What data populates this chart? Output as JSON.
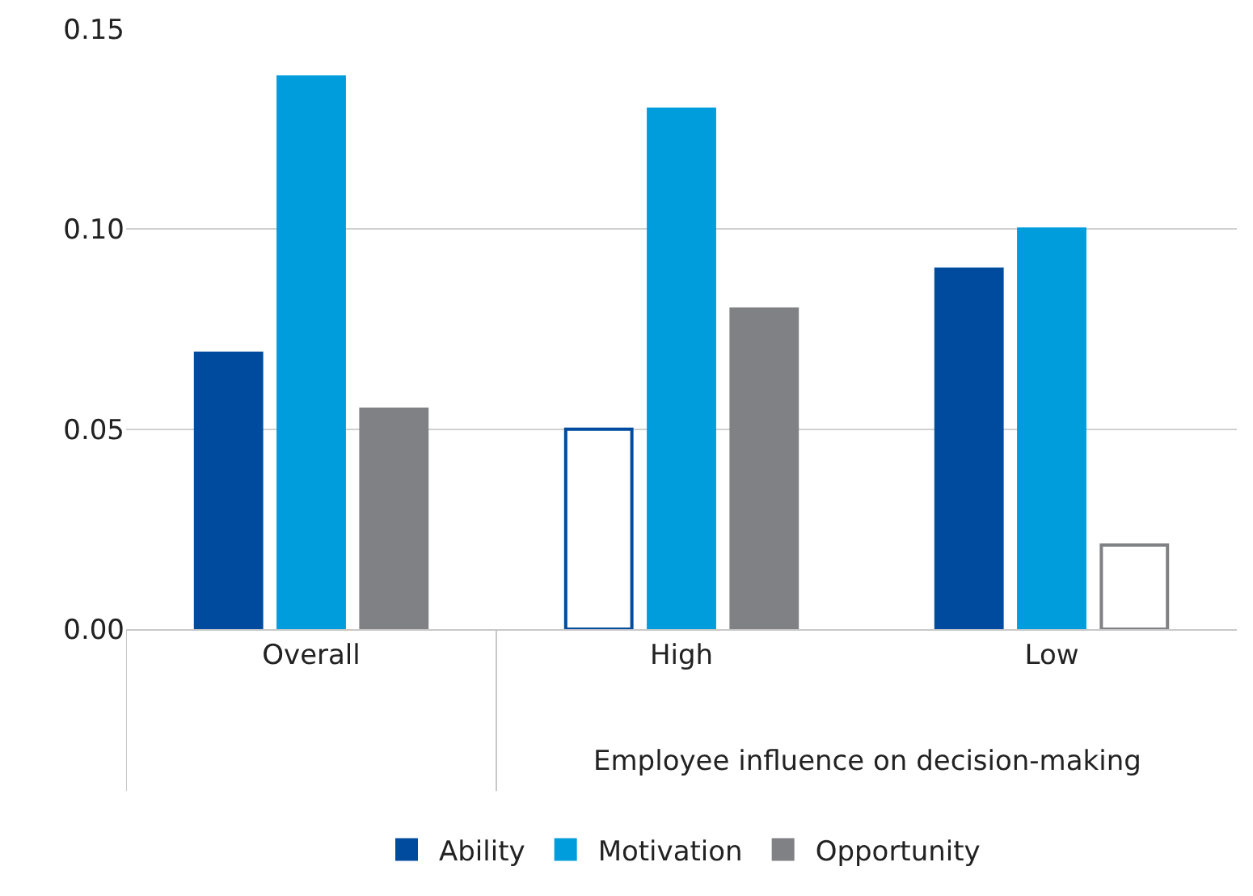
{
  "chart_data": {
    "type": "bar",
    "categories": [
      "Overall",
      "High",
      "Low"
    ],
    "xlabel": "Employee influence on decision-making",
    "series": [
      {
        "name": "Ability",
        "color": "#004b9e",
        "colors": [
          "#004b9e",
          "#ffffff",
          "#004b9e"
        ],
        "values": [
          0.069,
          0.05,
          0.09
        ]
      },
      {
        "name": "Motivation",
        "color": "#009ddc",
        "colors": [
          "#009ddc",
          "#009ddc",
          "#009ddc"
        ],
        "values": [
          0.138,
          0.13,
          0.1
        ]
      },
      {
        "name": "Opportunity",
        "color": "#808184",
        "colors": [
          "#808184",
          "#808184",
          "#ffffff"
        ],
        "values": [
          0.055,
          0.08,
          0.021
        ]
      }
    ],
    "ylim": [
      0,
      0.15
    ],
    "yticks": [
      {
        "value": 0,
        "label": "0.00"
      },
      {
        "value": 0.05,
        "label": "0.05"
      },
      {
        "value": 0.1,
        "label": "0.10"
      },
      {
        "value": 0.15,
        "label": "0.15"
      }
    ],
    "grid": "y",
    "legend": "bottom"
  }
}
